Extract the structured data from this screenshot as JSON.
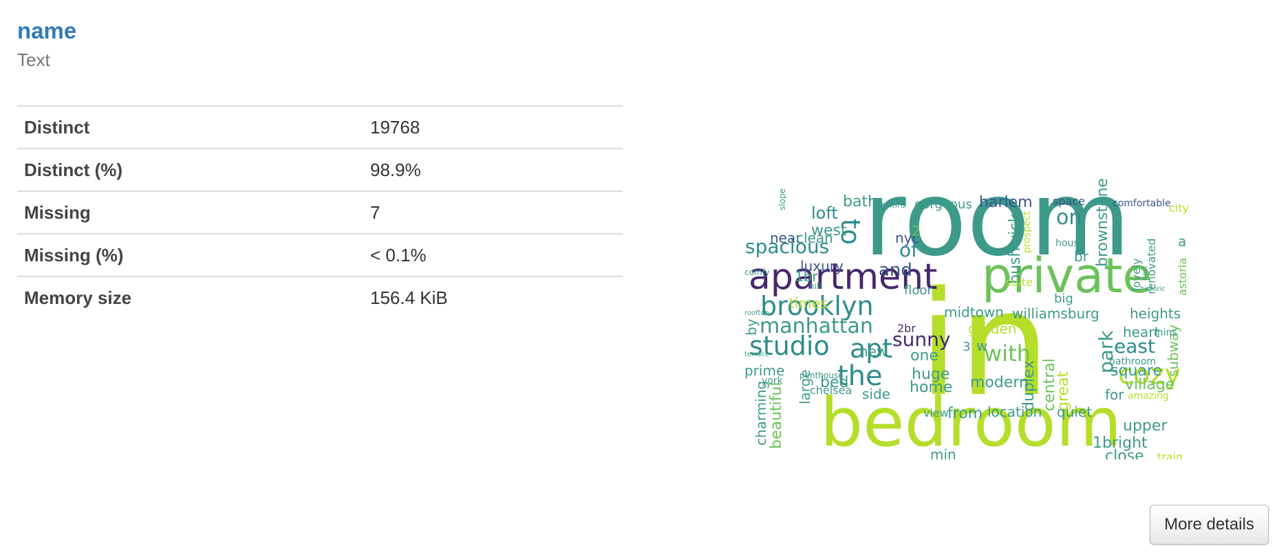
{
  "variable": {
    "name": "name",
    "type": "Text"
  },
  "stats": [
    {
      "label": "Distinct",
      "value": "19768"
    },
    {
      "label": "Distinct (%)",
      "value": "98.9%"
    },
    {
      "label": "Missing",
      "value": "7"
    },
    {
      "label": "Missing (%)",
      "value": "< 0.1%"
    },
    {
      "label": "Memory size",
      "value": "156.4 KiB"
    }
  ],
  "buttons": {
    "more_details": "More details"
  },
  "palette": {
    "link": "#337ab7",
    "muted": "#777777",
    "border": "#dddddd",
    "teal": "#3d9a8b",
    "dark_purple": "#46276d",
    "green": "#6cc25a",
    "lime": "#b5de2b",
    "blue_teal": "#2f8c8c",
    "navy": "#3b528b"
  },
  "wordcloud": {
    "words": [
      {
        "text": "room",
        "color": "#3d9a8b"
      },
      {
        "text": "in",
        "color": "#b5de2b"
      },
      {
        "text": "bedroom",
        "color": "#b5de2b"
      },
      {
        "text": "private",
        "color": "#6cc25a"
      },
      {
        "text": "apartment",
        "color": "#46276d"
      },
      {
        "text": "brooklyn",
        "color": "#2f8c8c"
      },
      {
        "text": "studio",
        "color": "#2f8c8c"
      },
      {
        "text": "manhattan",
        "color": "#3d9a8b"
      },
      {
        "text": "spacious",
        "color": "#2f8c8c"
      },
      {
        "text": "the",
        "color": "#2f8c8c"
      },
      {
        "text": "apt",
        "color": "#2f8c8c"
      },
      {
        "text": "cozy",
        "color": "#b5de2b"
      },
      {
        "text": "to",
        "color": "#2f8c8c"
      },
      {
        "text": "on",
        "color": "#2f8c8c"
      },
      {
        "text": "of",
        "color": "#2f8c8c"
      },
      {
        "text": "and",
        "color": "#3b528b"
      },
      {
        "text": "sunny",
        "color": "#46276d"
      },
      {
        "text": "with",
        "color": "#6cc25a"
      },
      {
        "text": "park",
        "color": "#3d9a8b"
      },
      {
        "text": "east",
        "color": "#2f8c8c"
      },
      {
        "text": "loft",
        "color": "#2f8c8c"
      },
      {
        "text": "west",
        "color": "#3d9a8b"
      },
      {
        "text": "bath",
        "color": "#3d9a8b"
      },
      {
        "text": "harlem",
        "color": "#3b528b"
      },
      {
        "text": "bushwick",
        "color": "#3d9a8b"
      },
      {
        "text": "brownstone",
        "color": "#3d9a8b"
      },
      {
        "text": "williamsburg",
        "color": "#3d9a8b"
      },
      {
        "text": "midtown",
        "color": "#3d9a8b"
      },
      {
        "text": "heights",
        "color": "#3d9a8b"
      },
      {
        "text": "luxury",
        "color": "#3b528b"
      },
      {
        "text": "near",
        "color": "#3b528b"
      },
      {
        "text": "clean",
        "color": "#3d9a8b"
      },
      {
        "text": "nyc",
        "color": "#3b528b"
      },
      {
        "text": "1br",
        "color": "#3d9a8b"
      },
      {
        "text": "gorgeous",
        "color": "#3d9a8b"
      },
      {
        "text": "space",
        "color": "#3b528b"
      },
      {
        "text": "comfortable",
        "color": "#3b528b"
      },
      {
        "text": "city",
        "color": "#b5de2b"
      },
      {
        "text": "house",
        "color": "#3d9a8b"
      },
      {
        "text": "br",
        "color": "#3d9a8b"
      },
      {
        "text": "lovely",
        "color": "#3d9a8b"
      },
      {
        "text": "renovated",
        "color": "#3d9a8b"
      },
      {
        "text": "a",
        "color": "#3d9a8b"
      },
      {
        "text": "astoria",
        "color": "#6cc25a"
      },
      {
        "text": "times",
        "color": "#b5de2b"
      },
      {
        "text": "floor",
        "color": "#3d9a8b"
      },
      {
        "text": "big",
        "color": "#3d9a8b"
      },
      {
        "text": "garden",
        "color": "#b5de2b"
      },
      {
        "text": "heart",
        "color": "#3d9a8b"
      },
      {
        "text": "subway",
        "color": "#6cc25a"
      },
      {
        "text": "by",
        "color": "#3d9a8b"
      },
      {
        "text": "2br",
        "color": "#46276d"
      },
      {
        "text": "new",
        "color": "#3d9a8b"
      },
      {
        "text": "one",
        "color": "#3d9a8b"
      },
      {
        "text": "w",
        "color": "#3d9a8b"
      },
      {
        "text": "3",
        "color": "#3d9a8b"
      },
      {
        "text": "prime",
        "color": "#3d9a8b"
      },
      {
        "text": "large",
        "color": "#3d9a8b"
      },
      {
        "text": "bed",
        "color": "#3d9a8b"
      },
      {
        "text": "huge",
        "color": "#3d9a8b"
      },
      {
        "text": "modern",
        "color": "#3d9a8b"
      },
      {
        "text": "duplex",
        "color": "#3d9a8b"
      },
      {
        "text": "central",
        "color": "#6cc25a"
      },
      {
        "text": "great",
        "color": "#b5de2b"
      },
      {
        "text": "square",
        "color": "#3d9a8b"
      },
      {
        "text": "village",
        "color": "#6cc25a"
      },
      {
        "text": "home",
        "color": "#3d9a8b"
      },
      {
        "text": "side",
        "color": "#3d9a8b"
      },
      {
        "text": "chelsea",
        "color": "#3d9a8b"
      },
      {
        "text": "for",
        "color": "#3d9a8b"
      },
      {
        "text": "amazing",
        "color": "#b5de2b"
      },
      {
        "text": "charming",
        "color": "#3d9a8b"
      },
      {
        "text": "beautiful",
        "color": "#6cc25a"
      },
      {
        "text": "from",
        "color": "#3d9a8b"
      },
      {
        "text": "location",
        "color": "#3d9a8b"
      },
      {
        "text": "quiet",
        "color": "#3d9a8b"
      },
      {
        "text": "upper",
        "color": "#3d9a8b"
      },
      {
        "text": "1bright",
        "color": "#3d9a8b"
      },
      {
        "text": "close",
        "color": "#3d9a8b"
      },
      {
        "text": "min",
        "color": "#3d9a8b"
      },
      {
        "text": "view",
        "color": "#3d9a8b"
      },
      {
        "text": "train",
        "color": "#b5de2b"
      },
      {
        "text": "suite",
        "color": "#b5de2b"
      },
      {
        "text": "bathroom",
        "color": "#3d9a8b"
      },
      {
        "text": "mins",
        "color": "#3d9a8b"
      },
      {
        "text": "2",
        "color": "#6cc25a"
      },
      {
        "text": "entire",
        "color": "#3d9a8b"
      },
      {
        "text": "slope",
        "color": "#3d9a8b"
      },
      {
        "text": "comfy",
        "color": "#3d9a8b"
      },
      {
        "text": "hill",
        "color": "#3d9a8b"
      },
      {
        "text": "historic",
        "color": "#3d9a8b"
      },
      {
        "text": "best",
        "color": "#3d9a8b"
      },
      {
        "text": "prospect",
        "color": "#b5de2b"
      },
      {
        "text": "penthouse",
        "color": "#3d9a8b"
      },
      {
        "text": "york",
        "color": "#3d9a8b"
      },
      {
        "text": "terrace",
        "color": "#3d9a8b"
      },
      {
        "text": "rooftop",
        "color": "#3d9a8b"
      }
    ]
  }
}
